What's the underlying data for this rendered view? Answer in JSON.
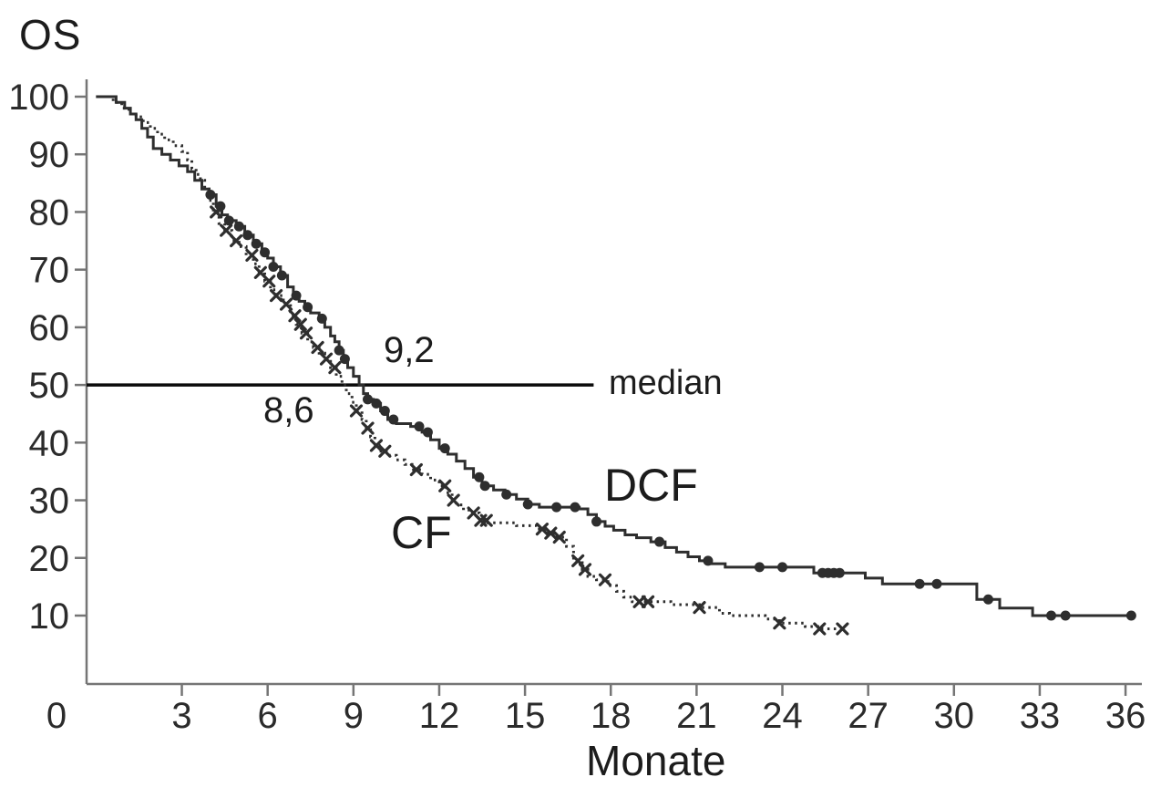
{
  "page": {
    "background": "#ffffff"
  },
  "title": "OS",
  "x_axis_label": "Monate",
  "chart_data": {
    "type": "line",
    "subtype": "kaplan-meier-step-curve",
    "title": "OS",
    "xlabel": "Monate",
    "ylabel": "OS",
    "xlim": [
      0,
      37
    ],
    "ylim": [
      0,
      100
    ],
    "x_ticks": [
      0,
      3,
      6,
      9,
      12,
      15,
      18,
      21,
      24,
      27,
      30,
      33,
      36
    ],
    "y_ticks": [
      10,
      20,
      30,
      40,
      50,
      60,
      70,
      80,
      90,
      100
    ],
    "grid": false,
    "legend_position": "inline-curve-labels",
    "colors": {
      "curve": "#2e2e2e",
      "axis": "#757575",
      "tick_text": "#2b2b2b",
      "median_line": "#0a0a0a",
      "background": "#ffffff"
    },
    "median": {
      "survival_level": 50,
      "label": "median",
      "line_end_month": 17.4,
      "dcf_median_months_label": "9,2",
      "cf_median_months_label": "8,6",
      "dcf_median_months": 9.2,
      "cf_median_months": 8.6
    },
    "annotations": [
      {
        "id": "dcf-median-value",
        "text": "9,2",
        "t": 10.1,
        "v": 53.5
      },
      {
        "id": "cf-median-value",
        "text": "8,6",
        "t": 5.9,
        "v": 43.0
      },
      {
        "id": "dcf-series-label",
        "text": "DCF",
        "t": 17.8,
        "v": 29.5
      },
      {
        "id": "cf-series-label",
        "text": "CF",
        "t": 10.3,
        "v": 21.5
      }
    ],
    "series": [
      {
        "name": "DCF",
        "line_style": "solid",
        "marker": "filled-circle",
        "steps": [
          [
            0,
            100
          ],
          [
            0.7,
            99
          ],
          [
            1.0,
            98
          ],
          [
            1.2,
            97
          ],
          [
            1.4,
            96
          ],
          [
            1.6,
            94.5
          ],
          [
            1.8,
            93
          ],
          [
            2.0,
            91
          ],
          [
            2.3,
            90
          ],
          [
            2.6,
            89
          ],
          [
            2.9,
            88
          ],
          [
            3.2,
            87
          ],
          [
            3.45,
            85.5
          ],
          [
            3.7,
            84
          ],
          [
            3.95,
            83
          ],
          [
            4.2,
            81
          ],
          [
            4.4,
            79.5
          ],
          [
            4.6,
            78.5
          ],
          [
            4.9,
            77.5
          ],
          [
            5.2,
            76
          ],
          [
            5.5,
            74.5
          ],
          [
            5.8,
            73
          ],
          [
            6.0,
            72
          ],
          [
            6.2,
            70.5
          ],
          [
            6.45,
            69
          ],
          [
            6.7,
            67
          ],
          [
            6.9,
            65.5
          ],
          [
            7.1,
            64.5
          ],
          [
            7.3,
            63.5
          ],
          [
            7.5,
            62.5
          ],
          [
            7.8,
            61.5
          ],
          [
            8.0,
            60
          ],
          [
            8.2,
            58.5
          ],
          [
            8.35,
            57.5
          ],
          [
            8.5,
            56
          ],
          [
            8.65,
            54.5
          ],
          [
            8.8,
            53
          ],
          [
            9.0,
            51.5
          ],
          [
            9.2,
            50
          ],
          [
            9.35,
            48.5
          ],
          [
            9.5,
            47.5
          ],
          [
            9.7,
            46.8
          ],
          [
            9.95,
            45.5
          ],
          [
            10.2,
            44
          ],
          [
            10.5,
            43.3
          ],
          [
            11.0,
            42.8
          ],
          [
            11.4,
            41.8
          ],
          [
            11.7,
            40.5
          ],
          [
            12.0,
            39
          ],
          [
            12.3,
            38
          ],
          [
            12.6,
            36.8
          ],
          [
            12.9,
            35.5
          ],
          [
            13.2,
            34
          ],
          [
            13.5,
            32.5
          ],
          [
            13.9,
            31.8
          ],
          [
            14.3,
            31
          ],
          [
            14.7,
            30.2
          ],
          [
            15.1,
            29.3
          ],
          [
            15.5,
            28.8
          ],
          [
            16.9,
            28.5
          ],
          [
            17.2,
            27.5
          ],
          [
            17.5,
            26.3
          ],
          [
            17.8,
            25.5
          ],
          [
            18.1,
            24.8
          ],
          [
            18.5,
            24
          ],
          [
            18.9,
            23.5
          ],
          [
            19.4,
            22.8
          ],
          [
            19.9,
            21.8
          ],
          [
            20.3,
            21
          ],
          [
            20.7,
            20.2
          ],
          [
            21.1,
            19.5
          ],
          [
            21.5,
            19
          ],
          [
            22.0,
            18.4
          ],
          [
            25.1,
            17.4
          ],
          [
            26.9,
            16.5
          ],
          [
            27.5,
            15.5
          ],
          [
            30.8,
            12.8
          ],
          [
            31.6,
            11.3
          ],
          [
            32.75,
            10
          ],
          [
            36.25,
            10
          ]
        ],
        "censor_marks_months": [
          4.0,
          4.35,
          4.65,
          5.0,
          5.3,
          5.6,
          5.9,
          6.2,
          6.5,
          7.0,
          7.4,
          7.9,
          8.5,
          8.7,
          9.5,
          9.8,
          10.1,
          10.4,
          11.3,
          11.6,
          12.2,
          13.4,
          13.6,
          14.35,
          15.1,
          16.1,
          16.75,
          17.5,
          19.7,
          21.4,
          23.2,
          24.0,
          25.4,
          25.6,
          25.8,
          26.0,
          28.8,
          29.4,
          31.2,
          33.4,
          33.9,
          36.2
        ]
      },
      {
        "name": "CF",
        "line_style": "dashed",
        "marker": "x",
        "steps": [
          [
            0,
            100
          ],
          [
            0.6,
            99
          ],
          [
            0.9,
            98
          ],
          [
            1.15,
            97
          ],
          [
            1.4,
            96.5
          ],
          [
            1.65,
            95.5
          ],
          [
            1.9,
            94.5
          ],
          [
            2.15,
            93.5
          ],
          [
            2.4,
            92.5
          ],
          [
            2.7,
            91.5
          ],
          [
            3.0,
            90.5
          ],
          [
            3.2,
            89
          ],
          [
            3.35,
            87.5
          ],
          [
            3.5,
            86.5
          ],
          [
            3.65,
            85.5
          ],
          [
            3.8,
            84
          ],
          [
            3.95,
            82
          ],
          [
            4.1,
            80
          ],
          [
            4.3,
            78
          ],
          [
            4.5,
            76.8
          ],
          [
            4.75,
            75
          ],
          [
            5.0,
            74
          ],
          [
            5.25,
            72.5
          ],
          [
            5.5,
            71
          ],
          [
            5.7,
            69.5
          ],
          [
            5.9,
            68
          ],
          [
            6.1,
            66.5
          ],
          [
            6.3,
            65.5
          ],
          [
            6.55,
            64
          ],
          [
            6.8,
            62
          ],
          [
            7.0,
            60.5
          ],
          [
            7.2,
            59
          ],
          [
            7.4,
            57.5
          ],
          [
            7.6,
            56.5
          ],
          [
            7.8,
            55.5
          ],
          [
            8.0,
            54.5
          ],
          [
            8.2,
            53
          ],
          [
            8.4,
            51.5
          ],
          [
            8.6,
            50
          ],
          [
            8.75,
            48.5
          ],
          [
            8.95,
            47
          ],
          [
            9.1,
            45.5
          ],
          [
            9.3,
            44
          ],
          [
            9.45,
            42.5
          ],
          [
            9.6,
            41
          ],
          [
            9.75,
            39.5
          ],
          [
            9.9,
            38.5
          ],
          [
            10.15,
            37.8
          ],
          [
            10.5,
            37
          ],
          [
            10.8,
            36.2
          ],
          [
            11.1,
            35.3
          ],
          [
            11.4,
            34.5
          ],
          [
            11.7,
            33.5
          ],
          [
            12.0,
            32.5
          ],
          [
            12.25,
            31.3
          ],
          [
            12.45,
            30
          ],
          [
            12.6,
            29.2
          ],
          [
            12.85,
            28.3
          ],
          [
            13.1,
            27.8
          ],
          [
            13.4,
            26.5
          ],
          [
            13.7,
            26.1
          ],
          [
            14.7,
            25.6
          ],
          [
            15.4,
            25
          ],
          [
            15.7,
            24.3
          ],
          [
            16.0,
            23.6
          ],
          [
            16.45,
            22
          ],
          [
            16.7,
            19.5
          ],
          [
            17.0,
            18
          ],
          [
            17.2,
            16.8
          ],
          [
            17.5,
            16.2
          ],
          [
            17.9,
            15.2
          ],
          [
            18.2,
            14.2
          ],
          [
            18.45,
            13.2
          ],
          [
            18.75,
            12.4
          ],
          [
            20.1,
            11.9
          ],
          [
            21.1,
            11.4
          ],
          [
            21.8,
            10.4
          ],
          [
            22.15,
            10
          ],
          [
            23.4,
            9.4
          ],
          [
            23.9,
            8.7
          ],
          [
            24.8,
            8.1
          ],
          [
            25.3,
            7.7
          ],
          [
            26.2,
            7.7
          ]
        ],
        "censor_marks_months": [
          4.2,
          4.55,
          4.9,
          5.45,
          5.75,
          6.05,
          6.3,
          6.65,
          6.95,
          7.15,
          7.35,
          7.75,
          8.05,
          8.35,
          9.1,
          9.5,
          9.8,
          10.1,
          11.2,
          12.2,
          12.5,
          13.2,
          13.45,
          13.65,
          15.6,
          15.9,
          16.2,
          16.85,
          17.1,
          17.8,
          19.0,
          19.3,
          21.1,
          23.9,
          25.3,
          26.1
        ]
      }
    ]
  }
}
